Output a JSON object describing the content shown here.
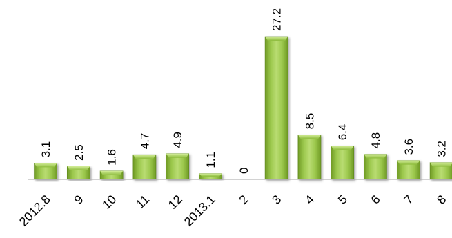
{
  "chart_data": {
    "type": "bar",
    "title": "",
    "xlabel": "",
    "ylabel": "",
    "categories": [
      "2012.8",
      "9",
      "10",
      "11",
      "12",
      "2013.1",
      "2",
      "3",
      "4",
      "5",
      "6",
      "7",
      "8"
    ],
    "values": [
      3.1,
      2.5,
      1.6,
      4.7,
      4.9,
      1.1,
      0,
      27.2,
      8.5,
      6.4,
      4.8,
      3.6,
      3.2
    ],
    "value_labels": [
      "3.1",
      "2.5",
      "1.6",
      "4.7",
      "4.9",
      "1.1",
      "0",
      "27.2",
      "8.5",
      "6.4",
      "4.8",
      "3.6",
      "3.2"
    ],
    "ylim": [
      0,
      27.2
    ],
    "grid": false,
    "legend": "none",
    "colors": {
      "bar_light": "#b5d96a",
      "bar_mid": "#8cbb3b",
      "bar_dark": "#5f8a1e",
      "axis": "#a6a6a6"
    }
  }
}
